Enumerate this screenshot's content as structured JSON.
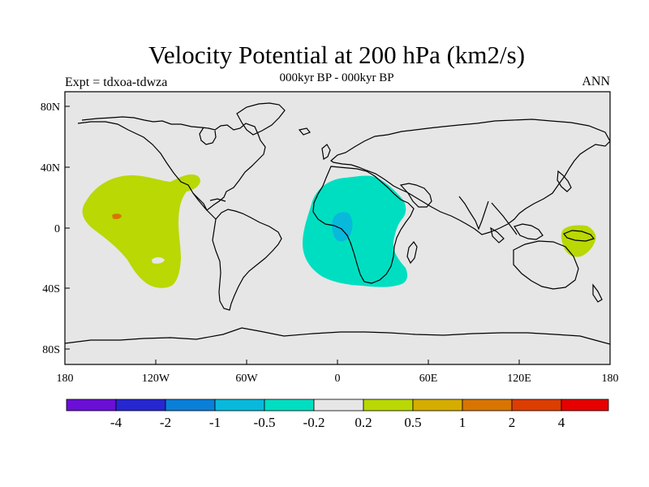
{
  "header": {
    "title": "Velocity Potential at 200 hPa (km2/s)",
    "subtitle": "000kyr BP - 000kyr BP",
    "left_label": "Expt = tdxoa-tdwza",
    "right_label": "ANN"
  },
  "map": {
    "lon_ticks": [
      "180",
      "120W",
      "60W",
      "0",
      "60E",
      "120E",
      "180"
    ],
    "lat_ticks": [
      "80N",
      "40N",
      "0",
      "40S",
      "80S"
    ]
  },
  "colorbar": {
    "labels": [
      "-4",
      "-2",
      "-1",
      "-0.5",
      "-0.2",
      "0.2",
      "0.5",
      "1",
      "2",
      "4"
    ],
    "colors": [
      "#6a0fd6",
      "#2727d1",
      "#0a7fd8",
      "#08b9dc",
      "#00dec1",
      "#e6e6e6",
      "#b9d804",
      "#d5ad00",
      "#d87502",
      "#dd3d00",
      "#e60000"
    ]
  },
  "colors": {
    "background_gray": "#e6e6e6",
    "lime": "#b9d804",
    "teal": "#00dec1",
    "cyan": "#08b9dc",
    "orange": "#d87502"
  }
}
